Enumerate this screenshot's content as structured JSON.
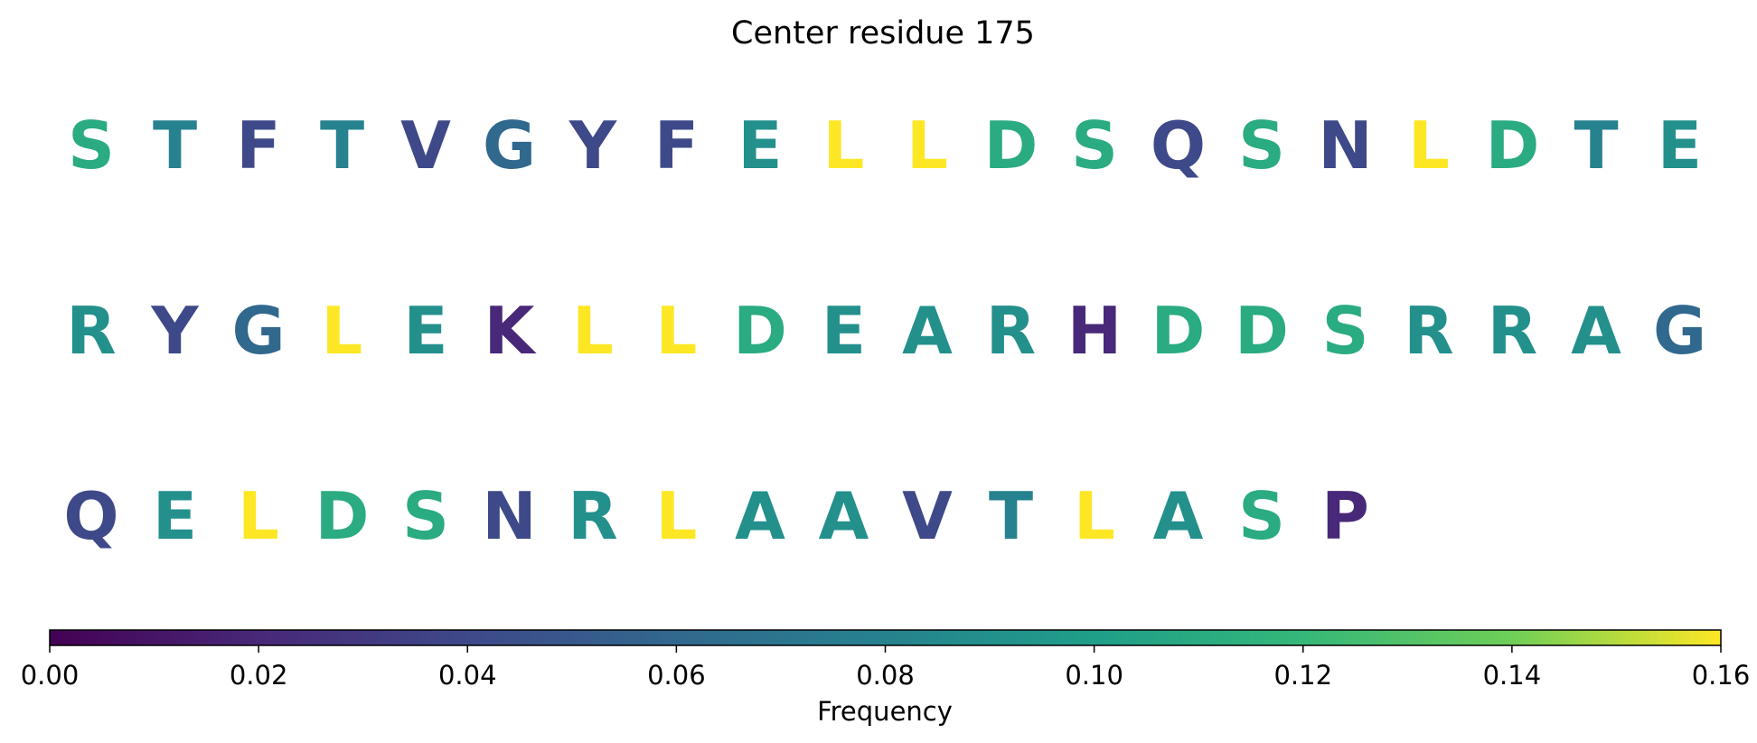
{
  "chart_data": {
    "type": "sequence-logo",
    "title": "Center residue 175",
    "colormap": "viridis",
    "rows": [
      {
        "letters": [
          "S",
          "T",
          "F",
          "T",
          "V",
          "G",
          "Y",
          "F",
          "E",
          "L",
          "L",
          "D",
          "S",
          "Q",
          "S",
          "N",
          "L",
          "D",
          "T",
          "E"
        ],
        "values": [
          0.11,
          0.08,
          0.04,
          0.08,
          0.04,
          0.06,
          0.04,
          0.04,
          0.09,
          0.16,
          0.16,
          0.11,
          0.11,
          0.04,
          0.11,
          0.04,
          0.16,
          0.11,
          0.08,
          0.09
        ]
      },
      {
        "letters": [
          "R",
          "Y",
          "G",
          "L",
          "E",
          "K",
          "L",
          "L",
          "D",
          "E",
          "A",
          "R",
          "H",
          "D",
          "D",
          "S",
          "R",
          "R",
          "A",
          "G"
        ],
        "values": [
          0.09,
          0.04,
          0.06,
          0.16,
          0.09,
          0.02,
          0.16,
          0.16,
          0.11,
          0.09,
          0.09,
          0.09,
          0.02,
          0.11,
          0.11,
          0.11,
          0.09,
          0.09,
          0.09,
          0.06
        ]
      },
      {
        "letters": [
          "Q",
          "E",
          "L",
          "D",
          "S",
          "N",
          "R",
          "L",
          "A",
          "A",
          "V",
          "T",
          "L",
          "A",
          "S",
          "P"
        ],
        "values": [
          0.04,
          0.09,
          0.16,
          0.11,
          0.11,
          0.04,
          0.09,
          0.16,
          0.09,
          0.09,
          0.04,
          0.08,
          0.16,
          0.09,
          0.11,
          0.02
        ]
      }
    ],
    "colorbar": {
      "label": "Frequency",
      "range": [
        0,
        0.16
      ],
      "ticks": [
        "0.00",
        "0.02",
        "0.04",
        "0.06",
        "0.08",
        "0.10",
        "0.12",
        "0.14",
        "0.16"
      ]
    }
  }
}
